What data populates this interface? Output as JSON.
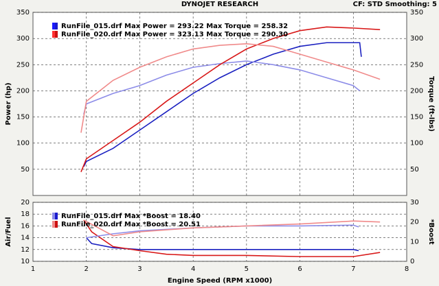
{
  "chart_data": [
    {
      "type": "line",
      "title": "DYNOJET RESEARCH",
      "subtitle": "CF: STD  Smoothing: 5",
      "ylabel": "Power (hp)",
      "y2label": "Torque (ft-lbs)",
      "xlim": [
        1,
        8
      ],
      "ylim": [
        0,
        350
      ],
      "yticks": [
        50,
        100,
        150,
        200,
        250,
        300,
        350
      ],
      "y2lim": [
        0,
        350
      ],
      "y2ticks": [
        50,
        100,
        150,
        200,
        250,
        300,
        350
      ],
      "grid": true,
      "legend": [
        {
          "text": "RunFile_015.drf Max Power = 293.22 Max Torque = 258.32",
          "colors": [
            "#1a1aff",
            "#1a1acc"
          ]
        },
        {
          "text": "RunFile_020.drf Max Power = 323.13 Max Torque = 290.30",
          "colors": [
            "#ff3030",
            "#cc1010"
          ]
        }
      ],
      "series": [
        {
          "color": "#1a20c0",
          "x": [
            1.95,
            2.0,
            2.5,
            3.0,
            3.5,
            4.0,
            4.5,
            5.0,
            5.5,
            6.0,
            6.5,
            7.0,
            7.12,
            7.15
          ],
          "values": [
            55,
            65,
            90,
            125,
            160,
            195,
            225,
            250,
            270,
            285,
            292,
            292,
            292,
            265
          ]
        },
        {
          "color": "#8c8ce8",
          "axis": "y2",
          "x": [
            1.95,
            2.0,
            2.5,
            3.0,
            3.5,
            4.0,
            4.5,
            5.0,
            5.5,
            6.0,
            6.5,
            7.0,
            7.12
          ],
          "values": [
            155,
            175,
            195,
            210,
            230,
            245,
            252,
            257,
            250,
            240,
            225,
            210,
            200
          ]
        },
        {
          "color": "#d81818",
          "x": [
            1.9,
            2.0,
            2.5,
            3.0,
            3.5,
            4.0,
            4.5,
            5.0,
            5.5,
            6.0,
            6.5,
            7.0,
            7.5
          ],
          "values": [
            45,
            70,
            105,
            140,
            180,
            215,
            250,
            280,
            300,
            315,
            322,
            320,
            317
          ]
        },
        {
          "color": "#f08a8a",
          "axis": "y2",
          "x": [
            1.9,
            2.0,
            2.5,
            3.0,
            3.5,
            4.0,
            4.5,
            5.0,
            5.5,
            6.0,
            6.5,
            7.0,
            7.5
          ],
          "values": [
            120,
            180,
            220,
            245,
            265,
            280,
            287,
            290,
            285,
            270,
            255,
            240,
            222
          ]
        }
      ]
    },
    {
      "type": "line",
      "xlabel": "Engine Speed (RPM x1000)",
      "ylabel": "Air/Fuel",
      "y2label": "*Boost",
      "xlim": [
        1,
        8
      ],
      "xticks": [
        1,
        2,
        3,
        4,
        5,
        6,
        7,
        8
      ],
      "ylim": [
        10,
        20
      ],
      "yticks": [
        10,
        12,
        14,
        16,
        18,
        20
      ],
      "y2lim": [
        0,
        30
      ],
      "y2ticks": [
        0,
        10,
        20,
        30
      ],
      "grid": true,
      "legend": [
        {
          "text": "RunFile_015.drf Max *Boost = 18.40",
          "colors": [
            "#8c8ce8",
            "#1a1acc"
          ]
        },
        {
          "text": "RunFile_020.drf Max *Boost = 20.51",
          "colors": [
            "#f08a8a",
            "#cc1010"
          ]
        }
      ],
      "series": [
        {
          "color": "#1a20c0",
          "x": [
            2.0,
            2.1,
            2.5,
            3.0,
            4.0,
            5.0,
            6.0,
            7.0,
            7.1
          ],
          "values": [
            14,
            13,
            12.3,
            12,
            12,
            12,
            12,
            12,
            11.8
          ]
        },
        {
          "color": "#d81818",
          "x": [
            1.95,
            2.1,
            2.5,
            3.0,
            3.5,
            4.0,
            5.0,
            6.0,
            7.0,
            7.5
          ],
          "values": [
            17,
            15,
            12.5,
            11.8,
            11.2,
            11,
            11,
            10.8,
            10.8,
            11.5
          ]
        },
        {
          "color": "#8c8ce8",
          "axis": "y2",
          "x": [
            2.0,
            2.5,
            3.0,
            4.0,
            5.0,
            6.0,
            7.0,
            7.1
          ],
          "values": [
            12,
            14,
            15.5,
            17,
            18,
            18,
            18.4,
            17.5
          ]
        },
        {
          "color": "#f08a8a",
          "axis": "y2",
          "x": [
            1.95,
            2.5,
            3.0,
            4.0,
            5.0,
            6.0,
            7.0,
            7.5
          ],
          "values": [
            21,
            13,
            15,
            17,
            18,
            19,
            20.5,
            20
          ]
        }
      ]
    }
  ]
}
